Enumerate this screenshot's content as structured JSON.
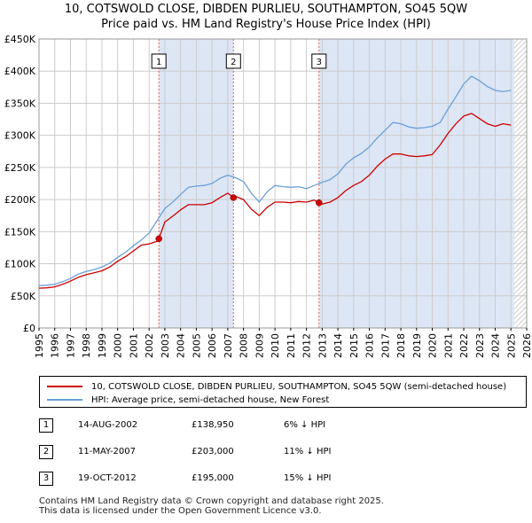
{
  "title_line1": "10, COTSWOLD CLOSE, DIBDEN PURLIEU, SOUTHAMPTON, SO45 5QW",
  "title_line2": "Price paid vs. HM Land Registry's House Price Index (HPI)",
  "colors": {
    "property": "#cc0000",
    "hpi": "#6a9fd8",
    "shade": "#dde6f5",
    "grid": "#cccccc"
  },
  "legend": {
    "property": "10, COTSWOLD CLOSE, DIBDEN PURLIEU, SOUTHAMPTON, SO45 5QW (semi-detached house)",
    "hpi": "HPI: Average price, semi-detached house, New Forest"
  },
  "sales": [
    {
      "marker": "1",
      "date": "14-AUG-2002",
      "price": "£138,950",
      "pct": "6% ↓ HPI"
    },
    {
      "marker": "2",
      "date": "11-MAY-2007",
      "price": "£203,000",
      "pct": "11% ↓ HPI"
    },
    {
      "marker": "3",
      "date": "19-OCT-2012",
      "price": "£195,000",
      "pct": "15% ↓ HPI"
    }
  ],
  "footer_line1": "Contains HM Land Registry data © Crown copyright and database right 2025.",
  "footer_line2": "This data is licensed under the Open Government Licence v3.0.",
  "chart_data": {
    "type": "line",
    "title": "10, COTSWOLD CLOSE, DIBDEN PURLIEU, SOUTHAMPTON, SO45 5QW",
    "subtitle": "Price paid vs. HM Land Registry's House Price Index (HPI)",
    "xlabel": "",
    "ylabel": "",
    "xlim": [
      1995,
      2026
    ],
    "ylim": [
      0,
      450000
    ],
    "y_ticks": [
      0,
      50000,
      100000,
      150000,
      200000,
      250000,
      300000,
      350000,
      400000,
      450000
    ],
    "y_tick_labels": [
      "£0",
      "£50K",
      "£100K",
      "£150K",
      "£200K",
      "£250K",
      "£300K",
      "£350K",
      "£400K",
      "£450K"
    ],
    "x_ticks": [
      1995,
      1996,
      1997,
      1998,
      1999,
      2000,
      2001,
      2002,
      2003,
      2004,
      2005,
      2006,
      2007,
      2008,
      2009,
      2010,
      2011,
      2012,
      2013,
      2014,
      2015,
      2016,
      2017,
      2018,
      2019,
      2020,
      2021,
      2022,
      2023,
      2024,
      2025,
      2026
    ],
    "grid": true,
    "legend_position": "below",
    "sale_markers": [
      {
        "label": "1",
        "year": 2002.62,
        "price": 138950
      },
      {
        "label": "2",
        "year": 2007.36,
        "price": 203000
      },
      {
        "label": "3",
        "year": 2012.8,
        "price": 195000
      }
    ],
    "shaded_periods": [
      [
        2002.62,
        2007.36
      ],
      [
        2012.8,
        2025.2
      ]
    ],
    "forecast_from": 2025.2,
    "series": [
      {
        "name": "HPI: Average price, semi-detached house, New Forest",
        "x": [
          1995,
          1995.5,
          1996,
          1996.5,
          1997,
          1997.5,
          1998,
          1998.5,
          1999,
          1999.5,
          2000,
          2000.5,
          2001,
          2001.5,
          2002,
          2002.5,
          2003,
          2003.5,
          2004,
          2004.5,
          2005,
          2005.5,
          2006,
          2006.5,
          2007,
          2007.5,
          2008,
          2008.5,
          2009,
          2009.5,
          2010,
          2010.5,
          2011,
          2011.5,
          2012,
          2012.5,
          2013,
          2013.5,
          2014,
          2014.5,
          2015,
          2015.5,
          2016,
          2016.5,
          2017,
          2017.5,
          2018,
          2018.5,
          2019,
          2019.5,
          2020,
          2020.5,
          2021,
          2021.5,
          2022,
          2022.5,
          2023,
          2023.5,
          2024,
          2024.5,
          2025
        ],
        "values": [
          66000,
          66500,
          68000,
          72000,
          77000,
          84000,
          88000,
          91000,
          95000,
          101000,
          110000,
          118000,
          128000,
          137000,
          148000,
          167000,
          186000,
          196000,
          208000,
          219000,
          221000,
          222000,
          225000,
          233000,
          238000,
          234000,
          228000,
          210000,
          196000,
          212000,
          222000,
          220000,
          219000,
          220000,
          217000,
          222000,
          227000,
          231000,
          240000,
          255000,
          265000,
          272000,
          282000,
          296000,
          308000,
          320000,
          318000,
          313000,
          311000,
          312000,
          314000,
          320000,
          341000,
          360000,
          380000,
          392000,
          385000,
          376000,
          370000,
          368000,
          370000
        ]
      },
      {
        "name": "10, COTSWOLD CLOSE, DIBDEN PURLIEU, SOUTHAMPTON, SO45 5QW (semi-detached house)",
        "x": [
          1995,
          1995.5,
          1996,
          1996.5,
          1997,
          1997.5,
          1998,
          1998.5,
          1999,
          1999.5,
          2000,
          2000.5,
          2001,
          2001.5,
          2002,
          2002.5,
          2002.62,
          2003,
          2003.5,
          2004,
          2004.5,
          2005,
          2005.5,
          2006,
          2006.5,
          2007,
          2007.36,
          2007.5,
          2008,
          2008.5,
          2009,
          2009.5,
          2010,
          2010.5,
          2011,
          2011.5,
          2012,
          2012.5,
          2012.8,
          2013,
          2013.5,
          2014,
          2014.5,
          2015,
          2015.5,
          2016,
          2016.5,
          2017,
          2017.5,
          2018,
          2018.5,
          2019,
          2019.5,
          2020,
          2020.5,
          2021,
          2021.5,
          2022,
          2022.5,
          2023,
          2023.5,
          2024,
          2024.5,
          2025
        ],
        "values": [
          62000,
          62500,
          64000,
          68000,
          73000,
          79000,
          83000,
          86000,
          89000,
          95000,
          104000,
          111000,
          120000,
          129000,
          131000,
          135000,
          138950,
          165000,
          174000,
          184000,
          192000,
          192000,
          192000,
          195000,
          203000,
          210000,
          203000,
          205000,
          200000,
          185000,
          175000,
          188000,
          196000,
          196000,
          195000,
          197000,
          196000,
          199000,
          195000,
          193000,
          196000,
          203000,
          214000,
          222000,
          228000,
          238000,
          252000,
          263000,
          271000,
          271000,
          268000,
          267000,
          268000,
          270000,
          285000,
          303000,
          318000,
          330000,
          334000,
          326000,
          318000,
          314000,
          318000,
          316000
        ]
      }
    ]
  }
}
